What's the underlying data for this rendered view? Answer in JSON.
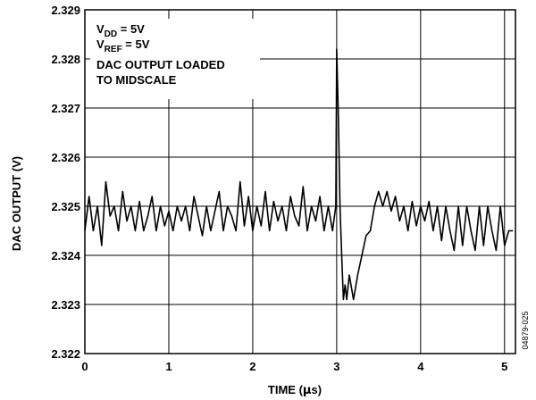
{
  "chart_data": {
    "type": "line",
    "title": "",
    "xlabel": "TIME (μs)",
    "xlabel_main": "TIME (",
    "xlabel_unit": "μ",
    "xlabel_tail": "s)",
    "ylabel": "DAC OUTPUT (V)",
    "xlim": [
      0,
      5.13
    ],
    "ylim": [
      2.322,
      2.329
    ],
    "x_ticks": [
      0,
      1,
      2,
      3,
      4,
      5
    ],
    "x_tick_labels": [
      "0",
      "1",
      "2",
      "3",
      "4",
      "5"
    ],
    "y_ticks": [
      2.322,
      2.323,
      2.324,
      2.325,
      2.326,
      2.327,
      2.328,
      2.329
    ],
    "y_tick_labels": [
      "2.322",
      "2.323",
      "2.324",
      "2.325",
      "2.326",
      "2.327",
      "2.328",
      "2.329"
    ],
    "grid": true,
    "annotations": {
      "vdd": {
        "main": "V",
        "sub": "DD",
        "rest": " = 5V"
      },
      "vref": {
        "main": "V",
        "sub": "REF",
        "rest": " = 5V"
      },
      "line3": "DAC OUTPUT LOADED",
      "line4": "TO MIDSCALE"
    },
    "figure_id": "04879-025",
    "series": [
      {
        "x": [
          0,
          0.05,
          0.1,
          0.15,
          0.2,
          0.25,
          0.3,
          0.35,
          0.4,
          0.45,
          0.5,
          0.55,
          0.6,
          0.65,
          0.7,
          0.75,
          0.8,
          0.85,
          0.9,
          0.95,
          1.0,
          1.05,
          1.1,
          1.15,
          1.2,
          1.25,
          1.3,
          1.35,
          1.4,
          1.45,
          1.5,
          1.55,
          1.6,
          1.65,
          1.7,
          1.75,
          1.8,
          1.85,
          1.9,
          1.95,
          2.0,
          2.05,
          2.1,
          2.15,
          2.2,
          2.25,
          2.3,
          2.35,
          2.4,
          2.45,
          2.5,
          2.55,
          2.6,
          2.65,
          2.7,
          2.75,
          2.8,
          2.85,
          2.9,
          2.95,
          2.99,
          3.0,
          3.02,
          3.04,
          3.06,
          3.08,
          3.1,
          3.12,
          3.15,
          3.2,
          3.25,
          3.3,
          3.35,
          3.4,
          3.45,
          3.5,
          3.55,
          3.6,
          3.65,
          3.7,
          3.75,
          3.8,
          3.85,
          3.9,
          3.95,
          4.0,
          4.05,
          4.1,
          4.15,
          4.2,
          4.25,
          4.3,
          4.35,
          4.4,
          4.45,
          4.5,
          4.55,
          4.6,
          4.65,
          4.7,
          4.75,
          4.8,
          4.85,
          4.9,
          4.95,
          5.0,
          5.05,
          5.1
        ],
        "values": [
          2.3245,
          2.3252,
          2.3245,
          2.325,
          2.3242,
          2.3255,
          2.3248,
          2.325,
          2.3245,
          2.3253,
          2.3247,
          2.325,
          2.3245,
          2.3251,
          2.3245,
          2.3248,
          2.3252,
          2.3245,
          2.325,
          2.3246,
          2.3249,
          2.3245,
          2.325,
          2.3247,
          2.325,
          2.3245,
          2.3252,
          2.3248,
          2.3244,
          2.325,
          2.3245,
          2.3249,
          2.3253,
          2.3245,
          2.325,
          2.3248,
          2.3245,
          2.3255,
          2.3246,
          2.3252,
          2.3245,
          2.325,
          2.3246,
          2.3253,
          2.3245,
          2.3251,
          2.3247,
          2.325,
          2.3245,
          2.3252,
          2.3248,
          2.3246,
          2.3254,
          2.3245,
          2.325,
          2.3247,
          2.3252,
          2.3245,
          2.325,
          2.3245,
          2.325,
          2.3282,
          2.3268,
          2.325,
          2.324,
          2.3231,
          2.3234,
          2.3231,
          2.3236,
          2.3231,
          2.3236,
          2.324,
          2.3244,
          2.3245,
          2.325,
          2.3253,
          2.325,
          2.3253,
          2.3249,
          2.3252,
          2.3247,
          2.325,
          2.3245,
          2.3251,
          2.3246,
          2.325,
          2.3247,
          2.3251,
          2.3245,
          2.325,
          2.3243,
          2.325,
          2.3245,
          2.3241,
          2.325,
          2.3242,
          2.325,
          2.3245,
          2.3241,
          2.325,
          2.3242,
          2.325,
          2.3245,
          2.3241,
          2.325,
          2.3242,
          2.3245,
          2.3245
        ]
      }
    ]
  }
}
